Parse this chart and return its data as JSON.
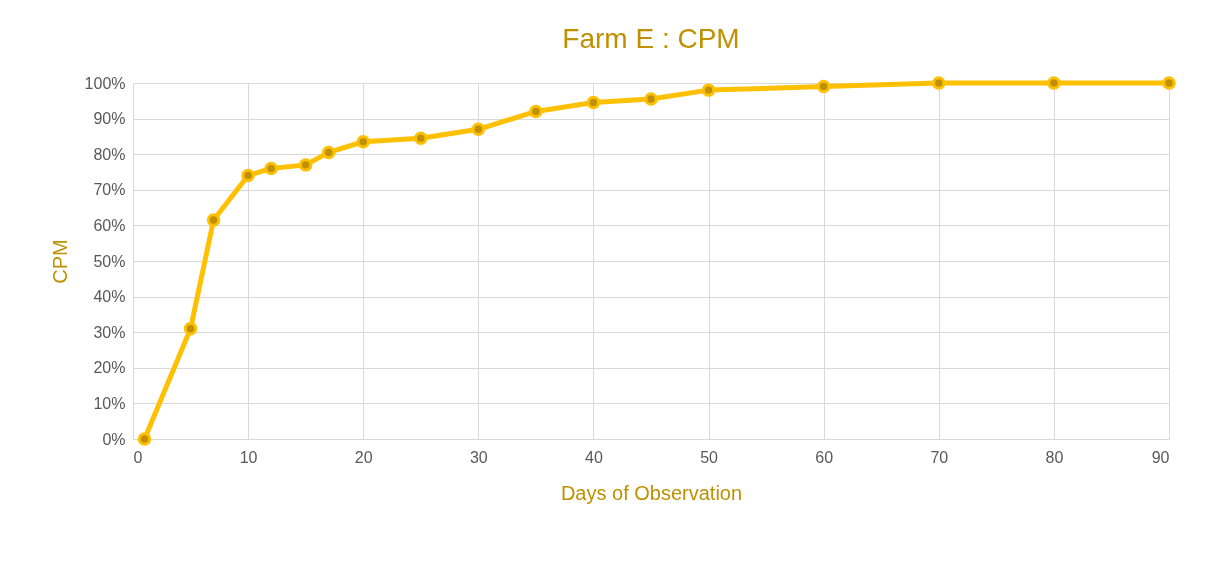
{
  "chart_data": {
    "type": "line",
    "title": "Farm E : CPM",
    "xlabel": "Days of Observation",
    "ylabel": "CPM",
    "x": [
      1,
      5,
      7,
      10,
      12,
      15,
      17,
      20,
      25,
      30,
      35,
      40,
      45,
      50,
      60,
      70,
      80,
      90
    ],
    "series": [
      {
        "color": "#ffc000",
        "values": [
          0,
          31,
          61.5,
          74,
          76,
          77,
          80.5,
          83.5,
          84.5,
          87,
          92,
          94.5,
          95.5,
          98,
          99,
          100,
          100,
          100
        ]
      }
    ],
    "xlim": [
      0,
      90
    ],
    "xticks": [
      0,
      10,
      20,
      30,
      40,
      50,
      60,
      70,
      80,
      90
    ],
    "ylim": [
      0,
      100
    ],
    "yticks": [
      {
        "value": 0,
        "label": "0%"
      },
      {
        "value": 10,
        "label": "10%"
      },
      {
        "value": 20,
        "label": "20%"
      },
      {
        "value": 30,
        "label": "30%"
      },
      {
        "value": 40,
        "label": "40%"
      },
      {
        "value": 50,
        "label": "50%"
      },
      {
        "value": 60,
        "label": "60%"
      },
      {
        "value": 70,
        "label": "70%"
      },
      {
        "value": 80,
        "label": "80%"
      },
      {
        "value": 90,
        "label": "90%"
      },
      {
        "value": 100,
        "label": "100%"
      }
    ],
    "grid": true,
    "marker": "circle",
    "line_style": "solid"
  }
}
